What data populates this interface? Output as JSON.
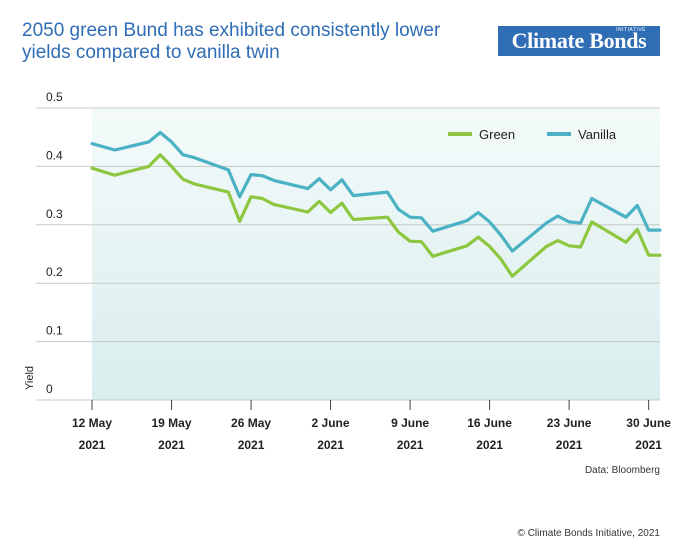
{
  "header": {
    "title": "2050 green Bund has exhibited consistently lower yields compared to vanilla twin",
    "logo_text": "Climate Bonds",
    "logo_small_text": "INITIATIVE"
  },
  "footer": {
    "source": "Data: Bloomberg",
    "copyright": "© Climate Bonds Initiative, 2021"
  },
  "colors": {
    "green": "#8dc63f",
    "vanilla": "#4bb1c4",
    "title": "#2f6db5",
    "area_top": "#f4fafa",
    "area_bottom": "#d9eded"
  },
  "chart_data": {
    "type": "line",
    "title": "2050 green Bund has exhibited consistently lower yields compared to vanilla twin",
    "xlabel": "",
    "ylabel": "Yield",
    "ylim": [
      0,
      0.5
    ],
    "yticks": [
      "0.5",
      "0.4",
      "0.3",
      "0.2",
      "0.1",
      "0"
    ],
    "xticks": [
      {
        "line1": "12 May",
        "line2": "2021"
      },
      {
        "line1": "19 May",
        "line2": "2021"
      },
      {
        "line1": "26 May",
        "line2": "2021"
      },
      {
        "line1": "2 June",
        "line2": "2021"
      },
      {
        "line1": "9 June",
        "line2": "2021"
      },
      {
        "line1": "16 June",
        "line2": "2021"
      },
      {
        "line1": "23 June",
        "line2": "2021"
      },
      {
        "line1": "30 June",
        "line2": "2021"
      }
    ],
    "xtick_days": [
      12,
      19,
      26,
      33,
      40,
      47,
      54,
      61
    ],
    "grid": true,
    "legend": "top-right",
    "x": [
      "2021-05-12",
      "2021-05-14",
      "2021-05-17",
      "2021-05-18",
      "2021-05-19",
      "2021-05-20",
      "2021-05-21",
      "2021-05-24",
      "2021-05-25",
      "2021-05-26",
      "2021-05-27",
      "2021-05-28",
      "2021-05-31",
      "2021-06-01",
      "2021-06-02",
      "2021-06-03",
      "2021-06-04",
      "2021-06-07",
      "2021-06-08",
      "2021-06-09",
      "2021-06-10",
      "2021-06-11",
      "2021-06-14",
      "2021-06-15",
      "2021-06-16",
      "2021-06-17",
      "2021-06-18",
      "2021-06-21",
      "2021-06-22",
      "2021-06-23",
      "2021-06-24",
      "2021-06-25",
      "2021-06-28",
      "2021-06-29",
      "2021-06-30",
      "2021-07-01"
    ],
    "series": [
      {
        "name": "Green",
        "values": [
          0.397,
          0.385,
          0.4,
          0.42,
          0.4,
          0.378,
          0.37,
          0.356,
          0.306,
          0.348,
          0.345,
          0.335,
          0.322,
          0.34,
          0.321,
          0.337,
          0.309,
          0.313,
          0.287,
          0.272,
          0.271,
          0.246,
          0.264,
          0.279,
          0.263,
          0.241,
          0.212,
          0.263,
          0.273,
          0.264,
          0.262,
          0.305,
          0.27,
          0.292,
          0.248,
          0.248
        ]
      },
      {
        "name": "Vanilla",
        "values": [
          0.439,
          0.428,
          0.442,
          0.458,
          0.442,
          0.42,
          0.415,
          0.394,
          0.348,
          0.386,
          0.384,
          0.376,
          0.362,
          0.379,
          0.36,
          0.377,
          0.35,
          0.356,
          0.326,
          0.313,
          0.312,
          0.289,
          0.307,
          0.321,
          0.305,
          0.282,
          0.255,
          0.303,
          0.315,
          0.305,
          0.303,
          0.345,
          0.313,
          0.333,
          0.291,
          0.291
        ]
      }
    ]
  }
}
